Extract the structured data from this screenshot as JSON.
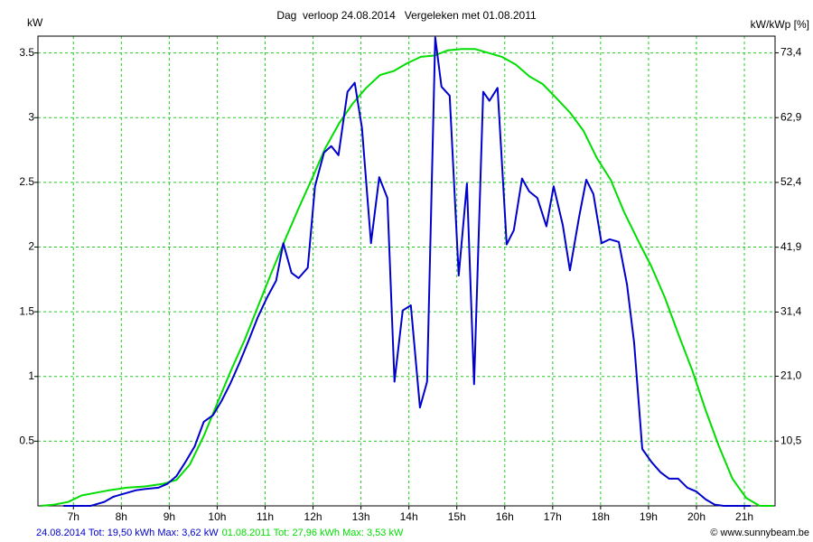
{
  "chart_data": {
    "type": "line",
    "title": "Dag  verloop 24.08.2014   Vergeleken met 01.08.2011",
    "y_label": "kW",
    "y2_label": "kW/kWp [%]",
    "credit": "© www.sunnybeam.be",
    "xlim": [
      6.26,
      21.64
    ],
    "xticks": [
      {
        "value": 7,
        "label": "7h"
      },
      {
        "value": 8,
        "label": "8h"
      },
      {
        "value": 9,
        "label": "9h"
      },
      {
        "value": 10,
        "label": "10h"
      },
      {
        "value": 11,
        "label": "11h"
      },
      {
        "value": 12,
        "label": "12h"
      },
      {
        "value": 13,
        "label": "13h"
      },
      {
        "value": 14,
        "label": "14h"
      },
      {
        "value": 15,
        "label": "15h"
      },
      {
        "value": 16,
        "label": "16h"
      },
      {
        "value": 17,
        "label": "17h"
      },
      {
        "value": 18,
        "label": "18h"
      },
      {
        "value": 19,
        "label": "19h"
      },
      {
        "value": 20,
        "label": "20h"
      },
      {
        "value": 21,
        "label": "21h"
      }
    ],
    "ylim": [
      0,
      3.63
    ],
    "yticks": [
      0.5,
      1,
      1.5,
      2,
      2.5,
      3,
      3.5
    ],
    "y2lim": [
      0,
      76.1
    ],
    "y2ticks": [
      {
        "value": 10.5,
        "label": "10,5"
      },
      {
        "value": 21.0,
        "label": "21,0"
      },
      {
        "value": 31.4,
        "label": "31,4"
      },
      {
        "value": 41.9,
        "label": "41,9"
      },
      {
        "value": 52.4,
        "label": "52,4"
      },
      {
        "value": 62.9,
        "label": "62,9"
      },
      {
        "value": 73.4,
        "label": "73,4"
      }
    ],
    "grid": true,
    "series": [
      {
        "name": "24.08.2014 Tot: 19,50 kWh Max: 3,62 kW",
        "color": "#0000cc",
        "x": [
          6.79,
          7.36,
          7.64,
          7.83,
          8.02,
          8.3,
          8.49,
          8.77,
          8.96,
          9.15,
          9.34,
          9.53,
          9.72,
          9.91,
          10.09,
          10.28,
          10.47,
          10.66,
          10.85,
          11.04,
          11.23,
          11.38,
          11.55,
          11.7,
          11.89,
          12.04,
          12.23,
          12.38,
          12.53,
          12.72,
          12.87,
          13.02,
          13.21,
          13.38,
          13.55,
          13.7,
          13.87,
          14.04,
          14.23,
          14.38,
          14.55,
          14.68,
          14.85,
          15.04,
          15.21,
          15.36,
          15.55,
          15.68,
          15.85,
          16.04,
          16.19,
          16.36,
          16.51,
          16.68,
          16.87,
          17.02,
          17.21,
          17.36,
          17.55,
          17.7,
          17.85,
          18.02,
          18.19,
          18.38,
          18.55,
          18.7,
          18.87,
          19.06,
          19.25,
          19.43,
          19.62,
          19.81,
          20.0,
          20.19,
          20.38,
          20.57,
          21.13
        ],
        "values": [
          0,
          0,
          0.03,
          0.07,
          0.09,
          0.12,
          0.13,
          0.14,
          0.17,
          0.23,
          0.34,
          0.46,
          0.65,
          0.7,
          0.81,
          0.95,
          1.11,
          1.28,
          1.46,
          1.61,
          1.74,
          2.03,
          1.8,
          1.76,
          1.84,
          2.47,
          2.73,
          2.78,
          2.71,
          3.2,
          3.27,
          2.92,
          2.03,
          2.54,
          2.38,
          0.96,
          1.51,
          1.55,
          0.76,
          0.96,
          3.62,
          3.24,
          3.17,
          1.78,
          2.49,
          0.94,
          3.2,
          3.13,
          3.23,
          2.02,
          2.13,
          2.53,
          2.43,
          2.38,
          2.16,
          2.47,
          2.17,
          1.82,
          2.23,
          2.52,
          2.41,
          2.03,
          2.06,
          2.04,
          1.71,
          1.26,
          0.44,
          0.34,
          0.26,
          0.21,
          0.21,
          0.14,
          0.11,
          0.05,
          0.01,
          0,
          0
        ]
      },
      {
        "name": "01.08.2011 Tot: 27,96 kWh Max: 3,53 kW",
        "color": "#00dd00",
        "x": [
          6.32,
          6.6,
          6.89,
          7.17,
          7.45,
          7.74,
          8.11,
          8.49,
          8.87,
          9.15,
          9.43,
          9.72,
          10.0,
          10.28,
          10.57,
          10.85,
          11.13,
          11.42,
          11.7,
          11.98,
          12.25,
          12.55,
          12.83,
          13.11,
          13.4,
          13.68,
          13.96,
          14.25,
          14.53,
          14.81,
          15.09,
          15.38,
          15.66,
          15.94,
          16.23,
          16.51,
          16.79,
          17.08,
          17.36,
          17.64,
          17.92,
          18.21,
          18.49,
          18.77,
          19.06,
          19.34,
          19.62,
          19.91,
          20.19,
          20.47,
          20.75,
          21.04,
          21.32,
          21.6
        ],
        "values": [
          0,
          0.01,
          0.03,
          0.08,
          0.1,
          0.12,
          0.14,
          0.15,
          0.17,
          0.2,
          0.32,
          0.54,
          0.79,
          1.04,
          1.28,
          1.54,
          1.8,
          2.06,
          2.3,
          2.53,
          2.76,
          2.96,
          3.11,
          3.23,
          3.33,
          3.36,
          3.42,
          3.47,
          3.48,
          3.52,
          3.53,
          3.53,
          3.5,
          3.47,
          3.41,
          3.32,
          3.26,
          3.15,
          3.04,
          2.9,
          2.69,
          2.52,
          2.27,
          2.06,
          1.85,
          1.61,
          1.33,
          1.05,
          0.74,
          0.46,
          0.21,
          0.06,
          0,
          0
        ]
      }
    ]
  }
}
